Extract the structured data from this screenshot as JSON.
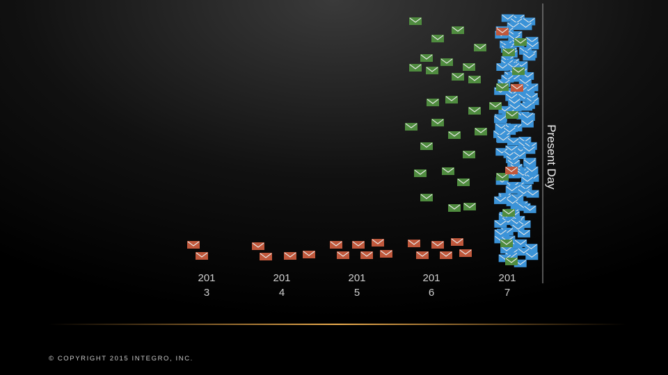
{
  "axis_label": "Present Day",
  "years": [
    {
      "line1": "201",
      "line2": "3"
    },
    {
      "line1": "201",
      "line2": "4"
    },
    {
      "line1": "201",
      "line2": "5"
    },
    {
      "line1": "201",
      "line2": "6"
    },
    {
      "line1": "201",
      "line2": "7"
    }
  ],
  "copyright": "© COPYRIGHT 2015 INTEGRO, INC."
}
